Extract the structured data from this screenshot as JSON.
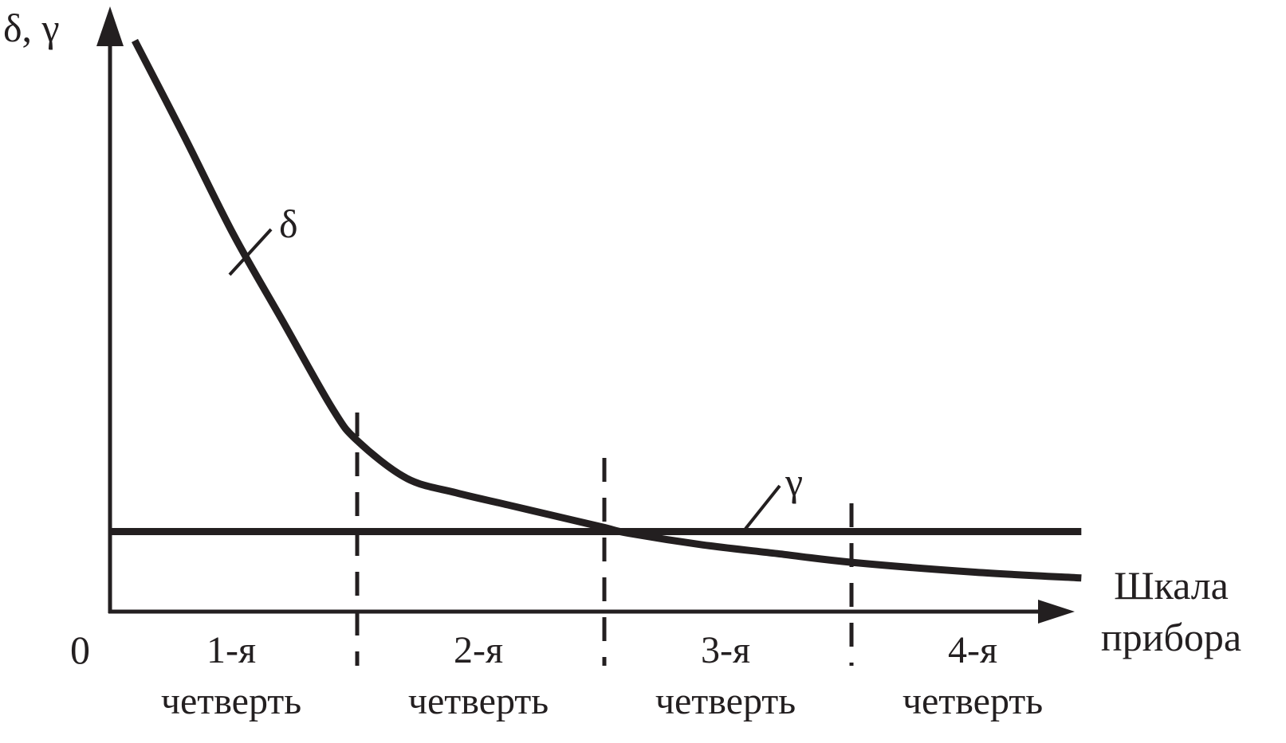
{
  "chart_data": {
    "type": "line",
    "title": "",
    "ylabel": "δ, γ",
    "xlabel": "Шкала прибора",
    "origin_label": "0",
    "xlim": [
      0,
      4
    ],
    "ylim": [
      0,
      1
    ],
    "grid": false,
    "legend": "none",
    "quarters": [
      {
        "line1": "1-я",
        "line2": "четверть"
      },
      {
        "line1": "2-я",
        "line2": "четверть"
      },
      {
        "line1": "3-я",
        "line2": "четверть"
      },
      {
        "line1": "4-я",
        "line2": "четверть"
      }
    ],
    "quarter_dividers": [
      1,
      2,
      3
    ],
    "series": [
      {
        "name": "δ",
        "color": "#231f20",
        "x": [
          0.1,
          0.3,
          0.5,
          0.7,
          0.9,
          1.0,
          1.2,
          1.4,
          1.6,
          1.8,
          2.0,
          2.1,
          2.4,
          2.7,
          3.0,
          3.5,
          3.93
        ],
        "y": [
          0.985,
          0.82,
          0.65,
          0.5,
          0.35,
          0.295,
          0.23,
          0.205,
          0.185,
          0.165,
          0.145,
          0.135,
          0.115,
          0.1,
          0.085,
          0.068,
          0.058
        ]
      },
      {
        "name": "γ",
        "color": "#231f20",
        "x": [
          0,
          3.93
        ],
        "y": [
          0.138,
          0.138
        ]
      }
    ]
  }
}
